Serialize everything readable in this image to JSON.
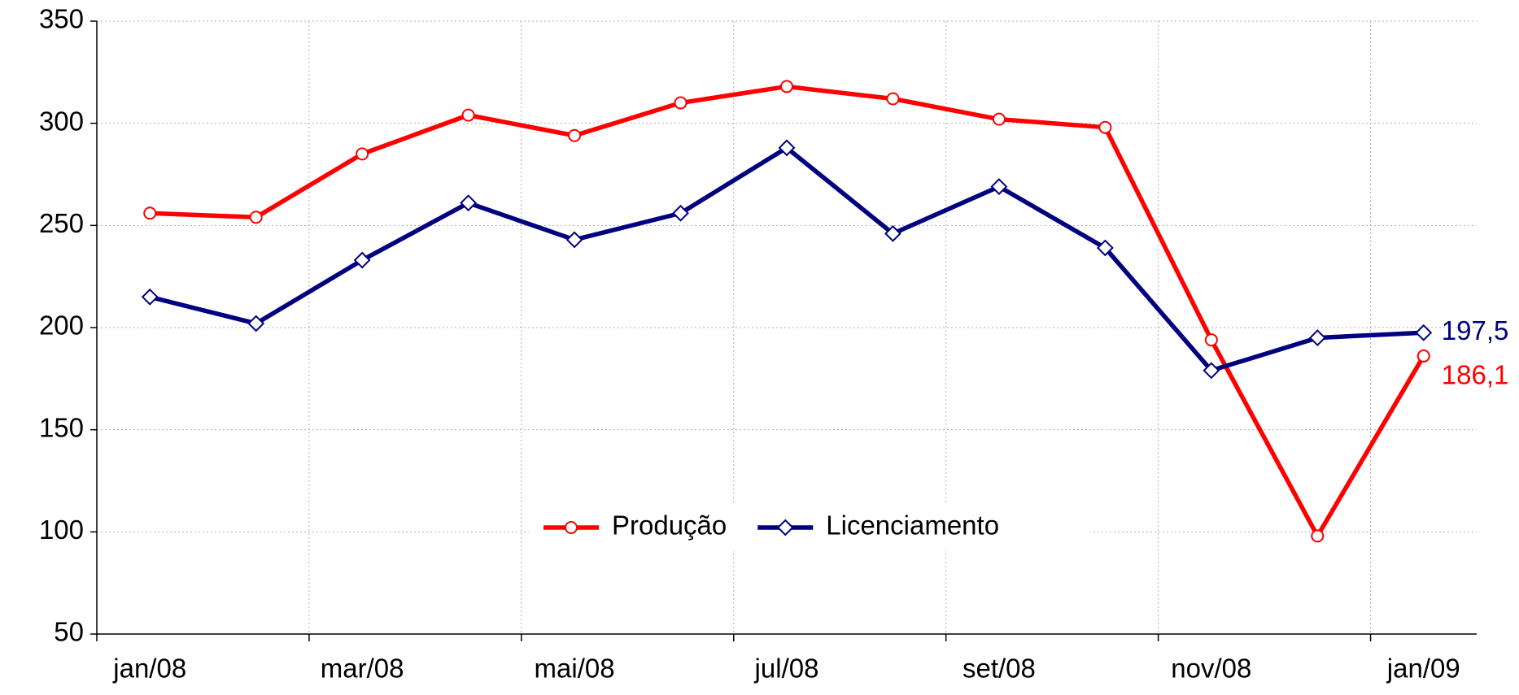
{
  "chart_data": {
    "type": "line",
    "categories": [
      "jan/08",
      null,
      "mar/08",
      null,
      "mai/08",
      null,
      "jul/08",
      null,
      "set/08",
      null,
      "nov/08",
      null,
      "jan/09"
    ],
    "series": [
      {
        "name": "Produção",
        "color": "#ff0000",
        "marker": "circle",
        "values": [
          256,
          254,
          285,
          304,
          294,
          310,
          318,
          312,
          302,
          298,
          194,
          98,
          186.1
        ],
        "value_labels": [
          null,
          null,
          null,
          null,
          null,
          null,
          null,
          null,
          null,
          null,
          null,
          null,
          "186,1"
        ]
      },
      {
        "name": "Licenciamento",
        "color": "#000080",
        "marker": "diamond",
        "values": [
          215,
          202,
          233,
          261,
          243,
          256,
          288,
          246,
          269,
          239,
          179,
          195,
          197.5
        ],
        "value_labels": [
          null,
          null,
          null,
          null,
          null,
          null,
          null,
          null,
          null,
          null,
          null,
          null,
          "197,5"
        ]
      }
    ],
    "ylim": [
      50,
      350
    ],
    "yticks": [
      50,
      100,
      150,
      200,
      250,
      300,
      350
    ],
    "grid": true,
    "legend": "center"
  }
}
